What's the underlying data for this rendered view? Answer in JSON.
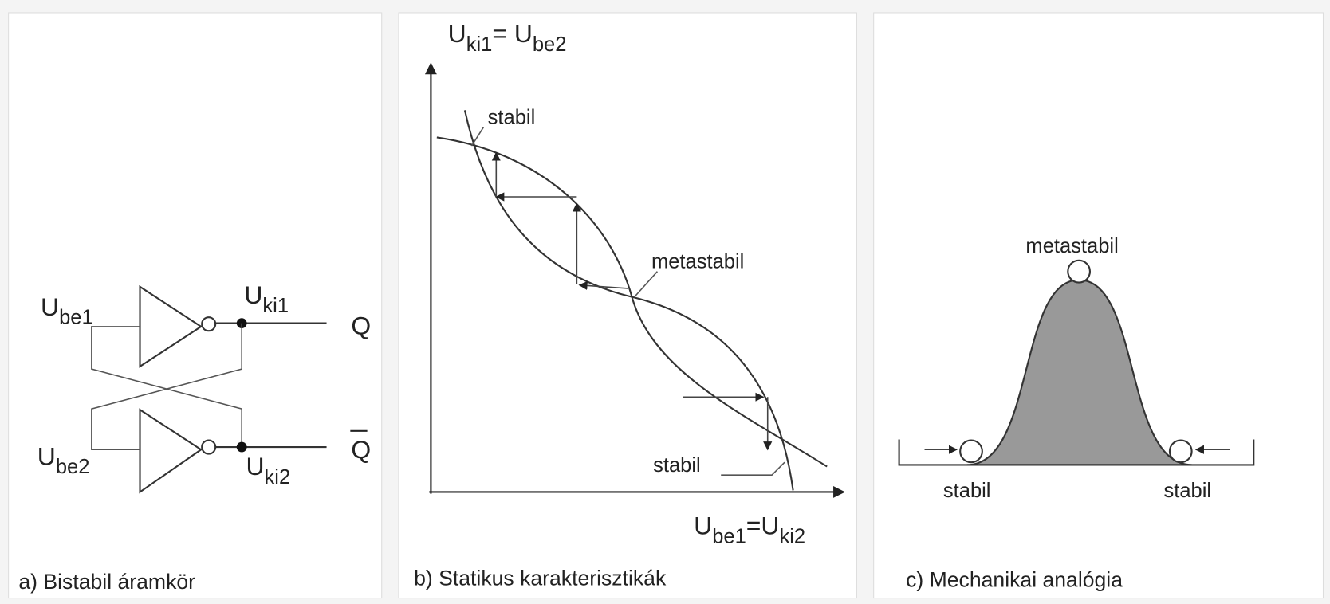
{
  "panels": [
    {
      "caption": "a) Bistabil áramkör",
      "labels": {
        "u_be1": [
          "U",
          "be1"
        ],
        "u_ki1": [
          "U",
          "ki1"
        ],
        "q": "Q",
        "q_bar": "Q",
        "u_be2": [
          "U",
          "be2"
        ],
        "u_ki2": [
          "U",
          "ki2"
        ]
      }
    },
    {
      "caption": "b) Statikus karakterisztikák",
      "y_axis_label": [
        "U",
        "ki1",
        "= U",
        "be2"
      ],
      "x_axis_label": [
        "U",
        "be1",
        "=U",
        "ki2"
      ],
      "labels": {
        "stable_top": "stabil",
        "metastable": "metastabil",
        "stable_bottom": "stabil"
      }
    },
    {
      "caption": "c) Mechanikai analógia",
      "labels": {
        "metastable": "metastabil",
        "stable_left": "stabil",
        "stable_right": "stabil"
      }
    }
  ]
}
